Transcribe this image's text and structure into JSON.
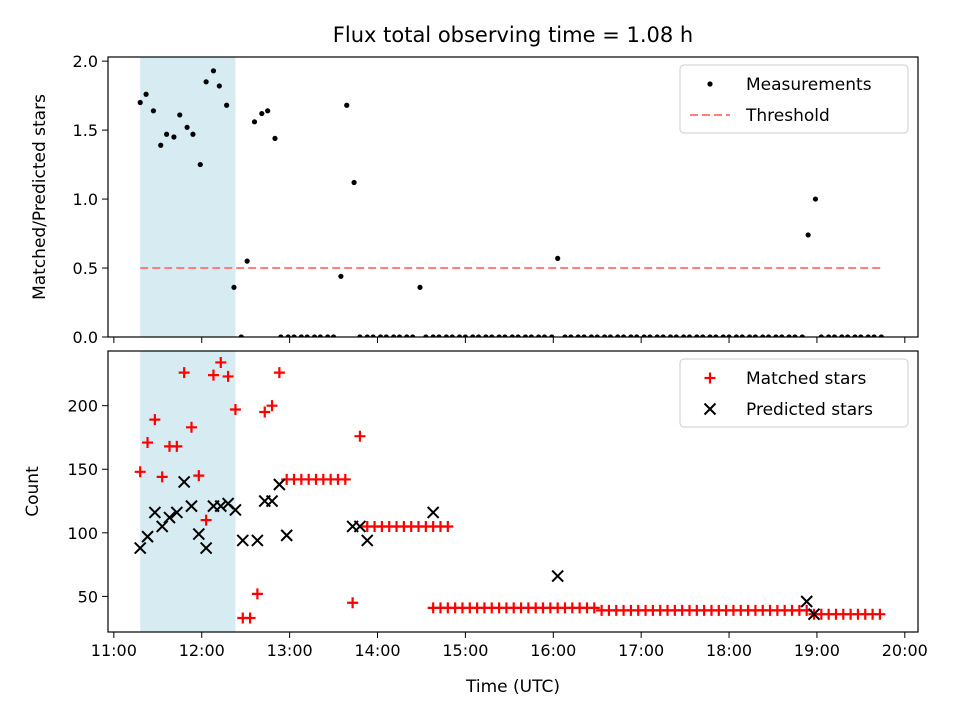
{
  "figure": {
    "title": "Flux total observing time = 1.08 h"
  },
  "chart_data": [
    {
      "type": "scatter",
      "panel": "top",
      "ylabel": "Matched/Predicted stars",
      "ylim": [
        0,
        2.03
      ],
      "yticks": [
        0,
        0.5,
        1.0,
        1.5,
        2.0
      ],
      "ytick_labels": [
        "0.0",
        "0.5",
        "1.0",
        "1.5",
        "2.0"
      ],
      "xlim": [
        "10:56",
        "20:09"
      ],
      "xticks": [
        "11:00",
        "12:00",
        "13:00",
        "14:00",
        "15:00",
        "16:00",
        "17:00",
        "18:00",
        "19:00",
        "20:00"
      ],
      "shaded_span": [
        "11:18",
        "12:23"
      ],
      "shaded_color": "#add8e6",
      "legend_position": "upper right",
      "series": [
        {
          "name": "Measurements",
          "marker": "dot",
          "color": "#000000",
          "x": [
            "11:18",
            "11:22",
            "11:27",
            "11:32",
            "11:36",
            "11:41",
            "11:45",
            "11:50",
            "11:54",
            "11:59",
            "12:03",
            "12:08",
            "12:12",
            "12:17",
            "12:22",
            "12:27",
            "12:31",
            "12:36",
            "12:41",
            "12:45",
            "12:50",
            "12:54",
            "12:59",
            "13:03",
            "13:08",
            "13:12",
            "13:17",
            "13:21",
            "13:26",
            "13:30",
            "13:35",
            "13:39",
            "13:44",
            "13:48",
            "13:53",
            "13:57",
            "14:02",
            "14:06",
            "14:11",
            "14:15",
            "14:20",
            "14:24",
            "14:29",
            "14:33",
            "14:38",
            "14:42",
            "14:47",
            "14:51",
            "14:56",
            "15:00",
            "15:05",
            "15:09",
            "15:14",
            "15:18",
            "15:23",
            "15:27",
            "15:32",
            "15:36",
            "15:41",
            "15:45",
            "15:50",
            "15:54",
            "15:59",
            "16:03",
            "16:08",
            "16:12",
            "16:17",
            "16:21",
            "16:26",
            "16:30",
            "16:35",
            "16:39",
            "16:44",
            "16:48",
            "16:53",
            "16:57",
            "17:02",
            "17:06",
            "17:11",
            "17:15",
            "17:20",
            "17:24",
            "17:29",
            "17:33",
            "17:38",
            "17:42",
            "17:47",
            "17:51",
            "17:56",
            "18:00",
            "18:05",
            "18:09",
            "18:14",
            "18:18",
            "18:23",
            "18:27",
            "18:32",
            "18:36",
            "18:41",
            "18:45",
            "18:50",
            "18:54",
            "18:59",
            "19:03",
            "19:08",
            "19:12",
            "19:17",
            "19:21",
            "19:26",
            "19:30",
            "19:35",
            "19:39",
            "19:44"
          ],
          "y": [
            1.7,
            1.76,
            1.64,
            1.39,
            1.47,
            1.45,
            1.61,
            1.52,
            1.47,
            1.25,
            1.85,
            1.93,
            1.82,
            1.68,
            0.36,
            0.0,
            0.55,
            1.56,
            1.62,
            1.64,
            1.44,
            0.0,
            0.0,
            0.0,
            0.0,
            0.0,
            0.0,
            0.0,
            0.0,
            0.0,
            0.44,
            1.68,
            1.12,
            0.0,
            0.0,
            0.0,
            0.0,
            0.0,
            0.0,
            0.0,
            0.0,
            0.0,
            0.36,
            0.0,
            0.0,
            0.0,
            0.0,
            0.0,
            0.0,
            0.0,
            0.0,
            0.0,
            0.0,
            0.0,
            0.0,
            0.0,
            0.0,
            0.0,
            0.0,
            0.0,
            0.0,
            0.0,
            0.0,
            0.57,
            0.0,
            0.0,
            0.0,
            0.0,
            0.0,
            0.0,
            0.0,
            0.0,
            0.0,
            0.0,
            0.0,
            0.0,
            0.0,
            0.0,
            0.0,
            0.0,
            0.0,
            0.0,
            0.0,
            0.0,
            0.0,
            0.0,
            0.0,
            0.0,
            0.0,
            0.0,
            0.0,
            0.0,
            0.0,
            0.0,
            0.0,
            0.0,
            0.0,
            0.0,
            0.0,
            0.0,
            0.0,
            0.74,
            1.0,
            0.0,
            0.0,
            0.0,
            0.0,
            0.0,
            0.0,
            0.0,
            0.0,
            0.0,
            0.0
          ]
        },
        {
          "name": "Threshold",
          "marker": "dashed-line",
          "color": "#ff7f7f",
          "x": [
            "11:18",
            "19:44"
          ],
          "y": [
            0.5,
            0.5
          ]
        }
      ]
    },
    {
      "type": "scatter",
      "panel": "bottom",
      "xlabel": "Time (UTC)",
      "ylabel": "Count",
      "ylim": [
        22,
        243
      ],
      "yticks": [
        50,
        100,
        150,
        200
      ],
      "ytick_labels": [
        "50",
        "100",
        "150",
        "200"
      ],
      "xlim": [
        "10:56",
        "20:09"
      ],
      "xticks": [
        "11:00",
        "12:00",
        "13:00",
        "14:00",
        "15:00",
        "16:00",
        "17:00",
        "18:00",
        "19:00",
        "20:00"
      ],
      "xtick_labels": [
        "11:00",
        "12:00",
        "13:00",
        "14:00",
        "15:00",
        "16:00",
        "17:00",
        "18:00",
        "19:00",
        "20:00"
      ],
      "shaded_span": [
        "11:18",
        "12:23"
      ],
      "shaded_color": "#add8e6",
      "legend_position": "upper right",
      "series": [
        {
          "name": "Matched stars",
          "marker": "plus",
          "color": "#ff0000",
          "points": [
            [
              "11:18",
              148
            ],
            [
              "11:23",
              171
            ],
            [
              "11:28",
              189
            ],
            [
              "11:33",
              144
            ],
            [
              "11:38",
              168
            ],
            [
              "11:43",
              168
            ],
            [
              "11:48",
              226
            ],
            [
              "11:53",
              183
            ],
            [
              "11:58",
              145
            ],
            [
              "12:03",
              110
            ],
            [
              "12:08",
              224
            ],
            [
              "12:13",
              234
            ],
            [
              "12:18",
              223
            ],
            [
              "12:23",
              197
            ],
            [
              "12:28",
              33
            ],
            [
              "12:33",
              33
            ],
            [
              "12:38",
              52
            ],
            [
              "12:43",
              195
            ],
            [
              "12:48",
              200
            ],
            [
              "12:53",
              226
            ],
            [
              "12:58",
              142
            ],
            [
              "13:03",
              142
            ],
            [
              "13:08",
              142
            ],
            [
              "13:13",
              142
            ],
            [
              "13:18",
              142
            ],
            [
              "13:23",
              142
            ],
            [
              "13:28",
              142
            ],
            [
              "13:33",
              142
            ],
            [
              "13:38",
              142
            ],
            [
              "13:43",
              45
            ],
            [
              "13:48",
              176
            ],
            [
              "13:53",
              105
            ],
            [
              "13:58",
              105
            ],
            [
              "14:03",
              105
            ],
            [
              "14:08",
              105
            ],
            [
              "14:13",
              105
            ],
            [
              "14:18",
              105
            ],
            [
              "14:23",
              105
            ],
            [
              "14:28",
              105
            ],
            [
              "14:33",
              105
            ],
            [
              "14:38",
              105
            ],
            [
              "14:43",
              105
            ],
            [
              "14:48",
              105
            ],
            [
              "14:38",
              41
            ],
            [
              "14:43",
              41
            ],
            [
              "14:48",
              41
            ],
            [
              "14:53",
              41
            ],
            [
              "14:58",
              41
            ],
            [
              "15:03",
              41
            ],
            [
              "15:08",
              41
            ],
            [
              "15:13",
              41
            ],
            [
              "15:18",
              41
            ],
            [
              "15:23",
              41
            ],
            [
              "15:28",
              41
            ],
            [
              "15:33",
              41
            ],
            [
              "15:38",
              41
            ],
            [
              "15:43",
              41
            ],
            [
              "15:48",
              41
            ],
            [
              "15:53",
              41
            ],
            [
              "15:58",
              41
            ],
            [
              "16:03",
              41
            ],
            [
              "16:08",
              41
            ],
            [
              "16:13",
              41
            ],
            [
              "16:18",
              41
            ],
            [
              "16:23",
              41
            ],
            [
              "16:28",
              41
            ],
            [
              "16:33",
              39
            ],
            [
              "16:38",
              39
            ],
            [
              "16:43",
              39
            ],
            [
              "16:48",
              39
            ],
            [
              "16:53",
              39
            ],
            [
              "16:58",
              39
            ],
            [
              "17:03",
              39
            ],
            [
              "17:08",
              39
            ],
            [
              "17:13",
              39
            ],
            [
              "17:18",
              39
            ],
            [
              "17:23",
              39
            ],
            [
              "17:28",
              39
            ],
            [
              "17:33",
              39
            ],
            [
              "17:38",
              39
            ],
            [
              "17:43",
              39
            ],
            [
              "17:48",
              39
            ],
            [
              "17:53",
              39
            ],
            [
              "17:58",
              39
            ],
            [
              "18:03",
              39
            ],
            [
              "18:08",
              39
            ],
            [
              "18:13",
              39
            ],
            [
              "18:18",
              39
            ],
            [
              "18:23",
              39
            ],
            [
              "18:28",
              39
            ],
            [
              "18:33",
              39
            ],
            [
              "18:38",
              39
            ],
            [
              "18:43",
              39
            ],
            [
              "18:48",
              39
            ],
            [
              "18:53",
              39
            ],
            [
              "18:58",
              36
            ],
            [
              "19:03",
              36
            ],
            [
              "19:08",
              36
            ],
            [
              "19:13",
              36
            ],
            [
              "19:18",
              36
            ],
            [
              "19:23",
              36
            ],
            [
              "19:28",
              36
            ],
            [
              "19:33",
              36
            ],
            [
              "19:38",
              36
            ],
            [
              "19:43",
              36
            ]
          ]
        },
        {
          "name": "Predicted stars",
          "marker": "x",
          "color": "#000000",
          "points": [
            [
              "11:18",
              88
            ],
            [
              "11:23",
              97
            ],
            [
              "11:28",
              116
            ],
            [
              "11:33",
              105
            ],
            [
              "11:38",
              112
            ],
            [
              "11:43",
              116
            ],
            [
              "11:48",
              140
            ],
            [
              "11:53",
              121
            ],
            [
              "11:58",
              99
            ],
            [
              "12:03",
              88
            ],
            [
              "12:08",
              121
            ],
            [
              "12:13",
              121
            ],
            [
              "12:18",
              123
            ],
            [
              "12:23",
              118
            ],
            [
              "12:28",
              94
            ],
            [
              "12:38",
              94
            ],
            [
              "12:43",
              125
            ],
            [
              "12:48",
              125
            ],
            [
              "12:53",
              138
            ],
            [
              "12:58",
              98
            ],
            [
              "13:43",
              105
            ],
            [
              "13:48",
              105
            ],
            [
              "13:53",
              94
            ],
            [
              "14:38",
              116
            ],
            [
              "16:03",
              66
            ],
            [
              "18:53",
              46
            ],
            [
              "18:58",
              36
            ]
          ]
        }
      ]
    }
  ]
}
